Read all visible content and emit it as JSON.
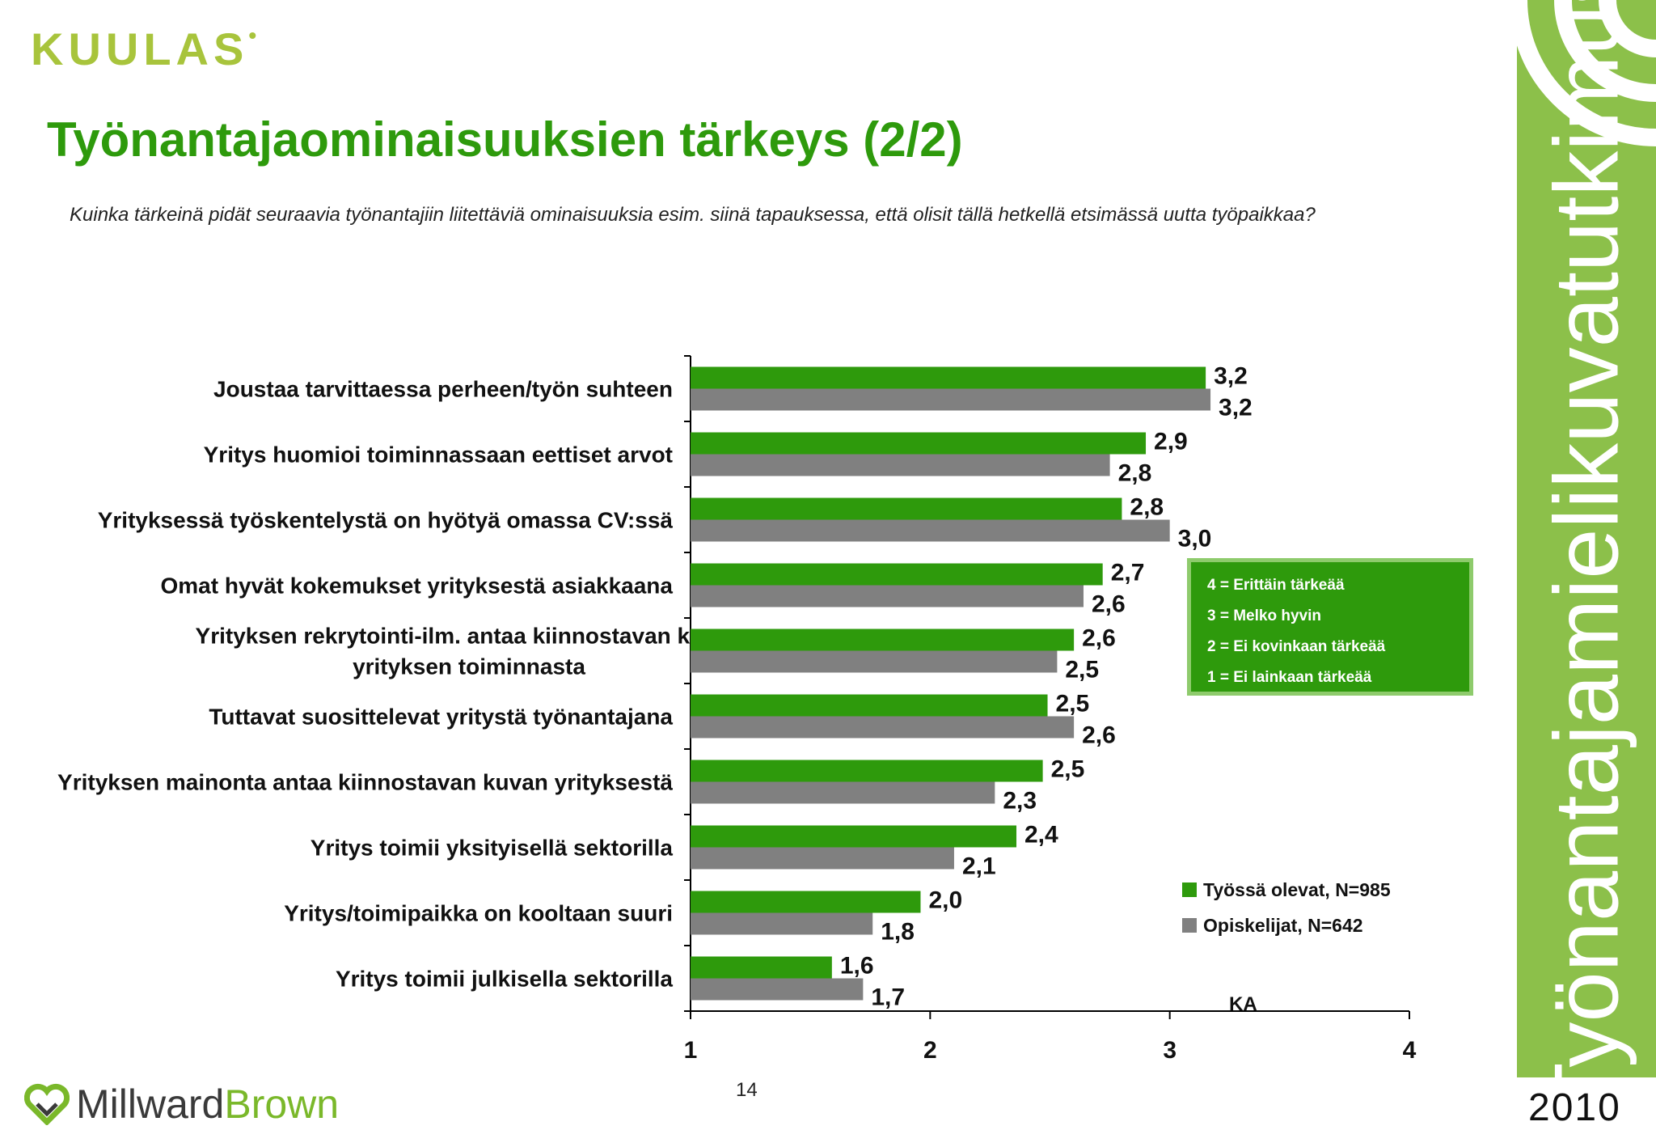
{
  "logo": {
    "text": "KUULAS",
    "mark": "•"
  },
  "title": "Työnantajaominaisuuksien tärkeys (2/2)",
  "question": "Kuinka tärkeinä pidät seuraavia työnantajiin liitettäviä ominaisuuksia esim. siinä tapauksessa, että olisit tällä hetkellä etsimässä uutta työpaikkaa?",
  "scale_legend": [
    "4 = Erittäin tärkeää",
    "3 = Melko hyvin",
    "2 = Ei kovinkaan tärkeää",
    "1 = Ei lainkaan tärkeää"
  ],
  "axis_unit_label": "KA",
  "page_number": "14",
  "footer_logo": {
    "part1": "Millward",
    "part2": "Brown"
  },
  "side_title": "Työnantajamielikuvatutkimus",
  "year": "2010",
  "colors": {
    "working": "#2e9a0c",
    "students": "#808080",
    "title": "#2e9a0c",
    "side": "#8cc04a"
  },
  "chart_data": {
    "type": "bar",
    "orientation": "horizontal",
    "categories": [
      [
        "Joustaa tarvittaessa perheen/työn suhteen"
      ],
      [
        "Yritys huomioi toiminnassaan eettiset arvot"
      ],
      [
        "Yrityksessä työskentelystä on hyötyä omassa CV:ssä"
      ],
      [
        "Omat hyvät kokemukset yrityksestä asiakkaana"
      ],
      [
        "Yrityksen rekrytointi-ilm. antaa kiinnostavan kuvan",
        "yrityksen toiminnasta"
      ],
      [
        "Tuttavat suosittelevat yritystä työnantajana"
      ],
      [
        "Yrityksen mainonta antaa kiinnostavan kuvan yrityksestä"
      ],
      [
        "Yritys toimii yksityisellä sektorilla"
      ],
      [
        "Yritys/toimipaikka on kooltaan suuri"
      ],
      [
        "Yritys toimii julkisella sektorilla"
      ]
    ],
    "series": [
      {
        "name": "Työssä olevat, N=985",
        "color": "#2e9a0c",
        "values": [
          3.15,
          2.9,
          2.8,
          2.72,
          2.6,
          2.49,
          2.47,
          2.36,
          1.96,
          1.59
        ],
        "labels": [
          "3,2",
          "2,9",
          "2,8",
          "2,7",
          "2,6",
          "2,5",
          "2,5",
          "2,4",
          "2,0",
          "1,6"
        ]
      },
      {
        "name": "Opiskelijat, N=642",
        "color": "#808080",
        "values": [
          3.17,
          2.75,
          3.0,
          2.64,
          2.53,
          2.6,
          2.27,
          2.1,
          1.76,
          1.72
        ],
        "labels": [
          "3,2",
          "2,8",
          "3,0",
          "2,6",
          "2,5",
          "2,6",
          "2,3",
          "2,1",
          "1,8",
          "1,7"
        ]
      }
    ],
    "xlim": [
      1,
      4
    ],
    "xticks": [
      "1",
      "2",
      "3",
      "4"
    ],
    "legend_position": "bottom-right"
  }
}
